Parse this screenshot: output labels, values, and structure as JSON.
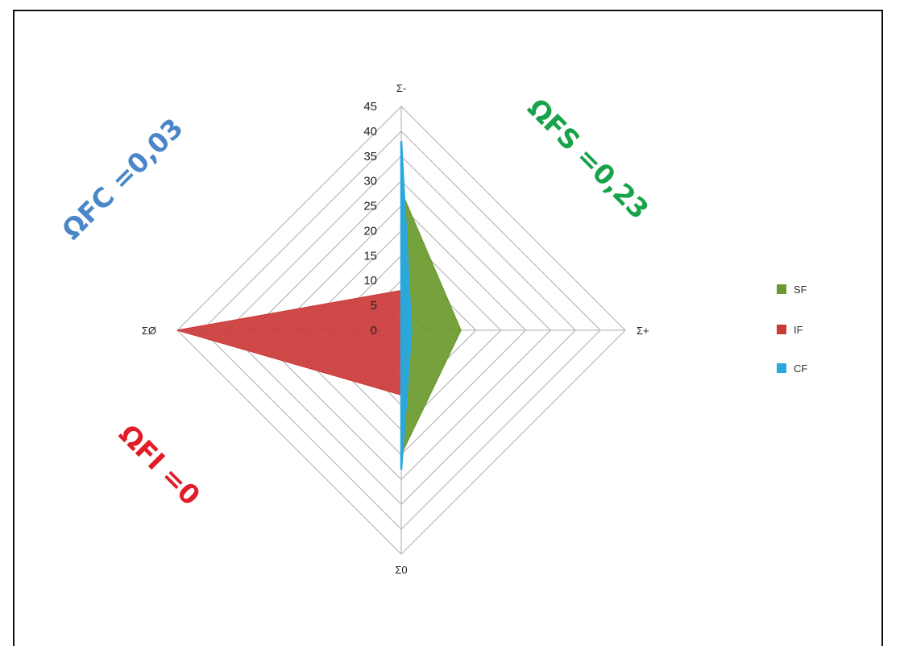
{
  "chart_data": {
    "type": "radar",
    "axes": [
      "Σ-",
      "Σ+",
      "Σ0",
      "ΣØ"
    ],
    "ticks": [
      "0",
      "5",
      "10",
      "15",
      "20",
      "25",
      "30",
      "35",
      "40",
      "45"
    ],
    "rlim": [
      0,
      45
    ],
    "grid": true,
    "legend_position": "right",
    "series": [
      {
        "name": "SF",
        "values": [
          28,
          12,
          25,
          0
        ],
        "color": "#6a9a2e"
      },
      {
        "name": "IF",
        "values": [
          8,
          0,
          13,
          45
        ],
        "color": "#cc3a3a"
      },
      {
        "name": "CF",
        "values": [
          38,
          2,
          28,
          0
        ],
        "color": "#29a8e0"
      }
    ],
    "annotations": [
      {
        "text": "ΩFC =0,03",
        "color": "#4a86c8"
      },
      {
        "text": "ΩFS =0,23",
        "color": "#16a34a"
      },
      {
        "text": "ΩFI =0",
        "color": "#e11d2a"
      }
    ]
  }
}
